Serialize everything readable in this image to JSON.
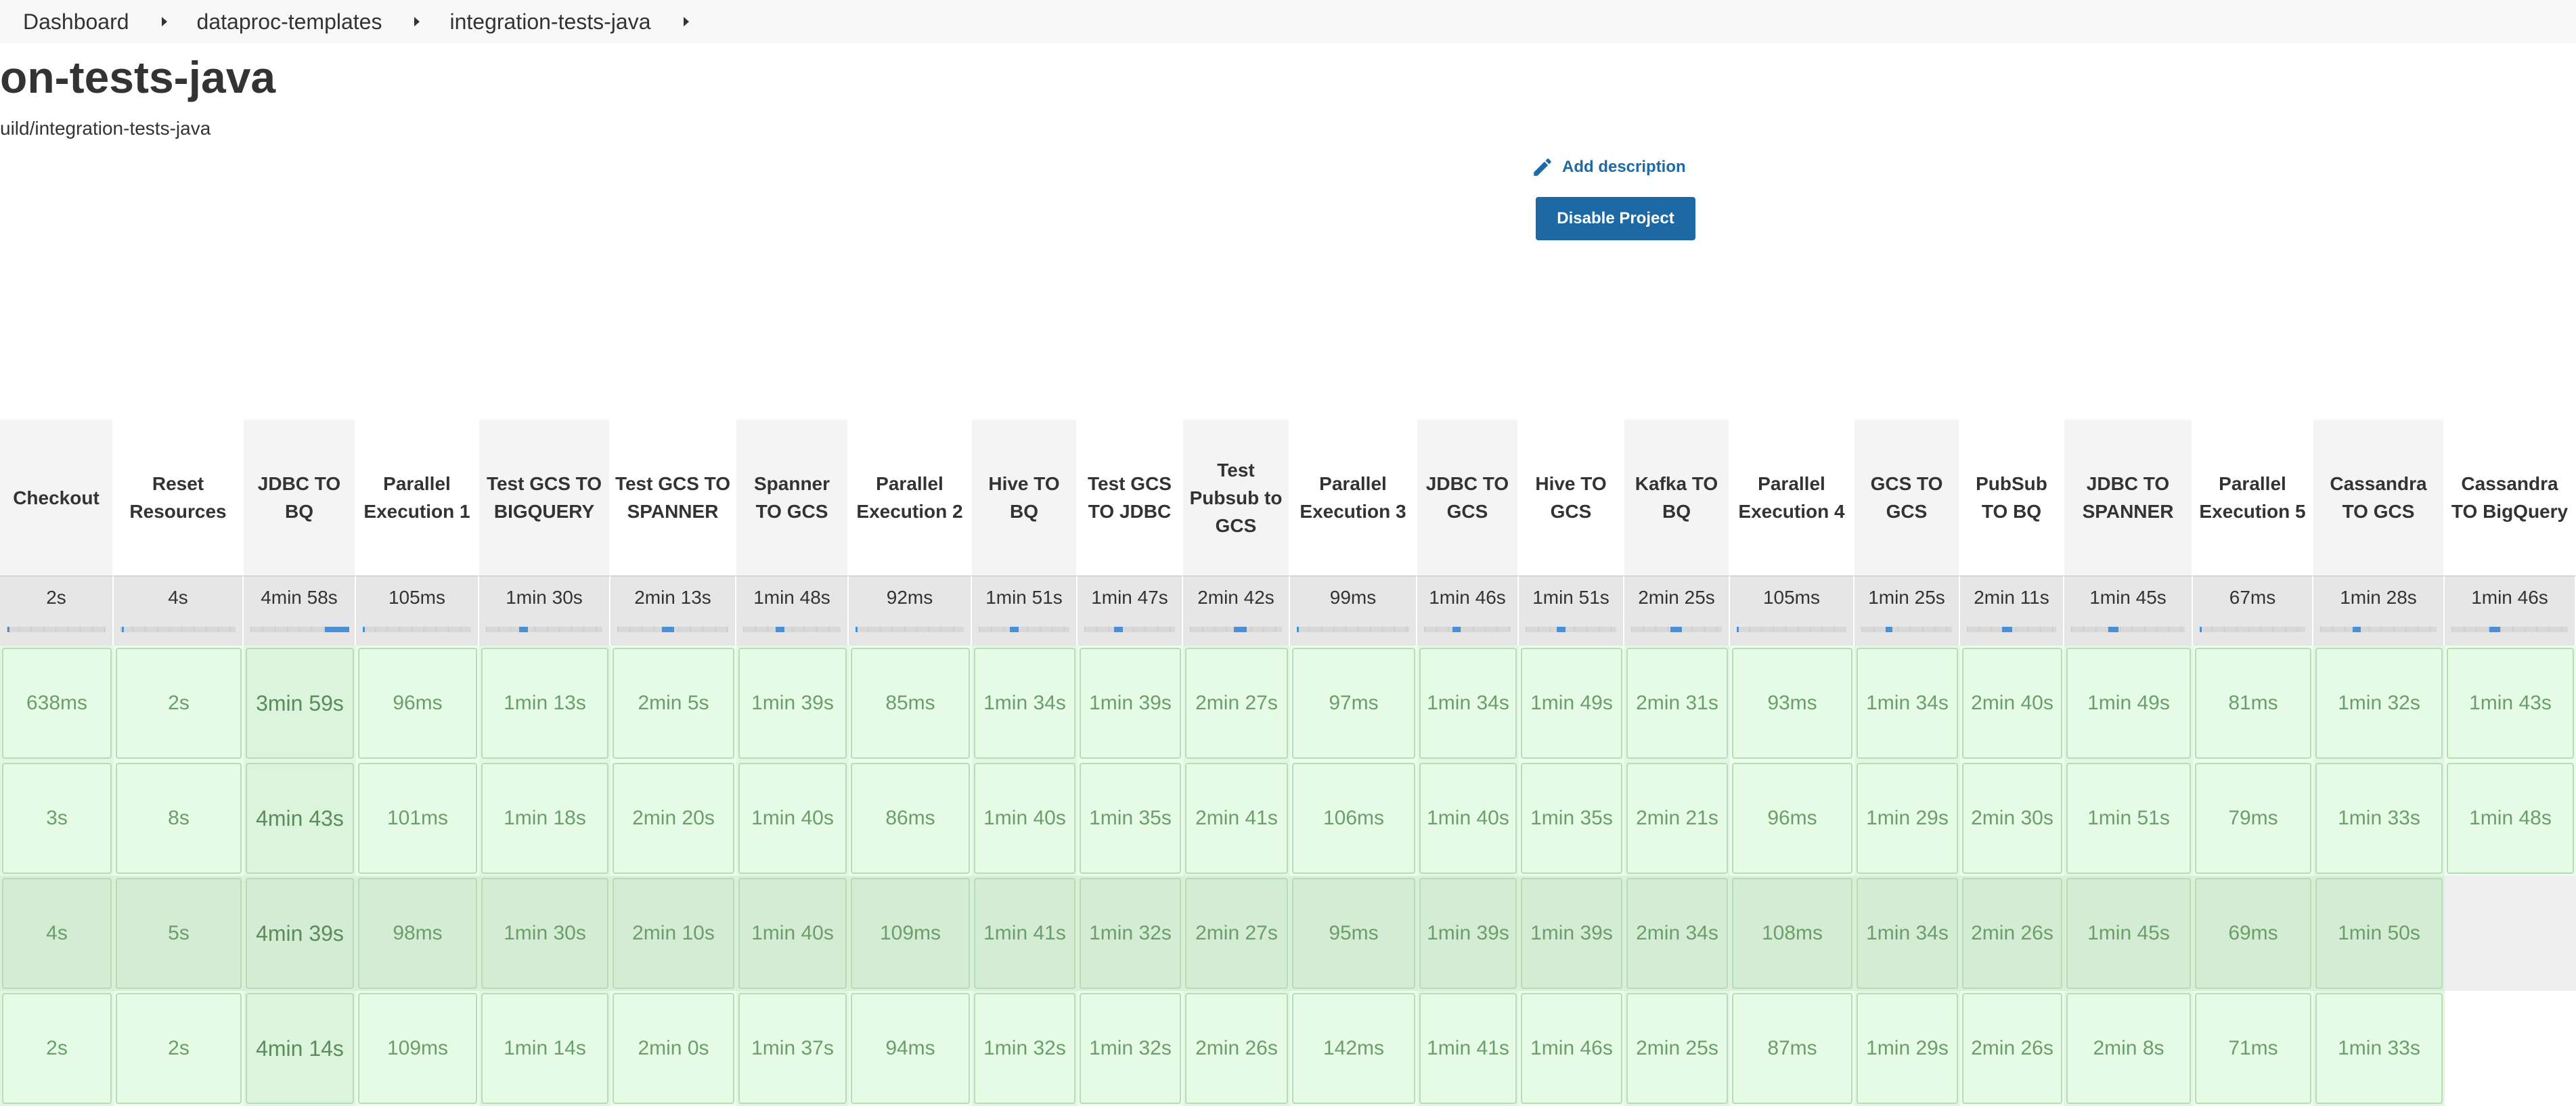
{
  "breadcrumb": [
    "Dashboard",
    "dataproc-templates",
    "integration-tests-java"
  ],
  "title": "on-tests-java",
  "subtitle": "uild/integration-tests-java",
  "add_description": "Add description",
  "disable_button": "Disable Project",
  "colors": {
    "accent": "#1c69a6",
    "success_cell": "#e3f9e3",
    "success_cell_dark": "#d4efd4"
  },
  "stages": [
    {
      "name": "Checkout",
      "avg": "2s",
      "runs": [
        "638ms",
        "3s",
        "4s",
        "2s"
      ]
    },
    {
      "name": "Reset Resources",
      "avg": "4s",
      "runs": [
        "2s",
        "8s",
        "5s",
        "2s"
      ]
    },
    {
      "name": "JDBC TO BQ",
      "avg": "4min 58s",
      "runs": [
        "3min 59s",
        "4min 43s",
        "4min 39s",
        "4min 14s"
      ]
    },
    {
      "name": "Parallel Execution 1",
      "avg": "105ms",
      "runs": [
        "96ms",
        "101ms",
        "98ms",
        "109ms"
      ]
    },
    {
      "name": "Test GCS TO BIGQUERY",
      "avg": "1min 30s",
      "runs": [
        "1min 13s",
        "1min 18s",
        "1min 30s",
        "1min 14s"
      ]
    },
    {
      "name": "Test GCS TO SPANNER",
      "avg": "2min 13s",
      "runs": [
        "2min 5s",
        "2min 20s",
        "2min 10s",
        "2min 0s"
      ]
    },
    {
      "name": "Spanner TO GCS",
      "avg": "1min 48s",
      "runs": [
        "1min 39s",
        "1min 40s",
        "1min 40s",
        "1min 37s"
      ]
    },
    {
      "name": "Parallel Execution 2",
      "avg": "92ms",
      "runs": [
        "85ms",
        "86ms",
        "109ms",
        "94ms"
      ]
    },
    {
      "name": "Hive TO BQ",
      "avg": "1min 51s",
      "runs": [
        "1min 34s",
        "1min 40s",
        "1min 41s",
        "1min 32s"
      ]
    },
    {
      "name": "Test GCS TO JDBC",
      "avg": "1min 47s",
      "runs": [
        "1min 39s",
        "1min 35s",
        "1min 32s",
        "1min 32s"
      ]
    },
    {
      "name": "Test Pubsub to GCS",
      "avg": "2min 42s",
      "runs": [
        "2min 27s",
        "2min 41s",
        "2min 27s",
        "2min 26s"
      ]
    },
    {
      "name": "Parallel Execution 3",
      "avg": "99ms",
      "runs": [
        "97ms",
        "106ms",
        "95ms",
        "142ms"
      ]
    },
    {
      "name": "JDBC TO GCS",
      "avg": "1min 46s",
      "runs": [
        "1min 34s",
        "1min 40s",
        "1min 39s",
        "1min 41s"
      ]
    },
    {
      "name": "Hive TO GCS",
      "avg": "1min 51s",
      "runs": [
        "1min 49s",
        "1min 35s",
        "1min 39s",
        "1min 46s"
      ]
    },
    {
      "name": "Kafka TO BQ",
      "avg": "2min 25s",
      "runs": [
        "2min 31s",
        "2min 21s",
        "2min 34s",
        "2min 25s"
      ]
    },
    {
      "name": "Parallel Execution 4",
      "avg": "105ms",
      "runs": [
        "93ms",
        "96ms",
        "108ms",
        "87ms"
      ]
    },
    {
      "name": "GCS TO GCS",
      "avg": "1min 25s",
      "runs": [
        "1min 34s",
        "1min 29s",
        "1min 34s",
        "1min 29s"
      ]
    },
    {
      "name": "PubSub TO BQ",
      "avg": "2min 11s",
      "runs": [
        "2min 40s",
        "2min 30s",
        "2min 26s",
        "2min 26s"
      ]
    },
    {
      "name": "JDBC TO SPANNER",
      "avg": "1min 45s",
      "runs": [
        "1min 49s",
        "1min 51s",
        "1min 45s",
        "2min 8s"
      ]
    },
    {
      "name": "Parallel Execution 5",
      "avg": "67ms",
      "runs": [
        "81ms",
        "79ms",
        "69ms",
        "71ms"
      ]
    },
    {
      "name": "Cassandra TO GCS",
      "avg": "1min 28s",
      "runs": [
        "1min 32s",
        "1min 33s",
        "1min 50s",
        "1min 33s"
      ]
    },
    {
      "name": "Cassandra TO BigQuery",
      "avg": "1min 46s",
      "runs": [
        "1min 43s",
        "1min 48s",
        null,
        null
      ]
    }
  ]
}
